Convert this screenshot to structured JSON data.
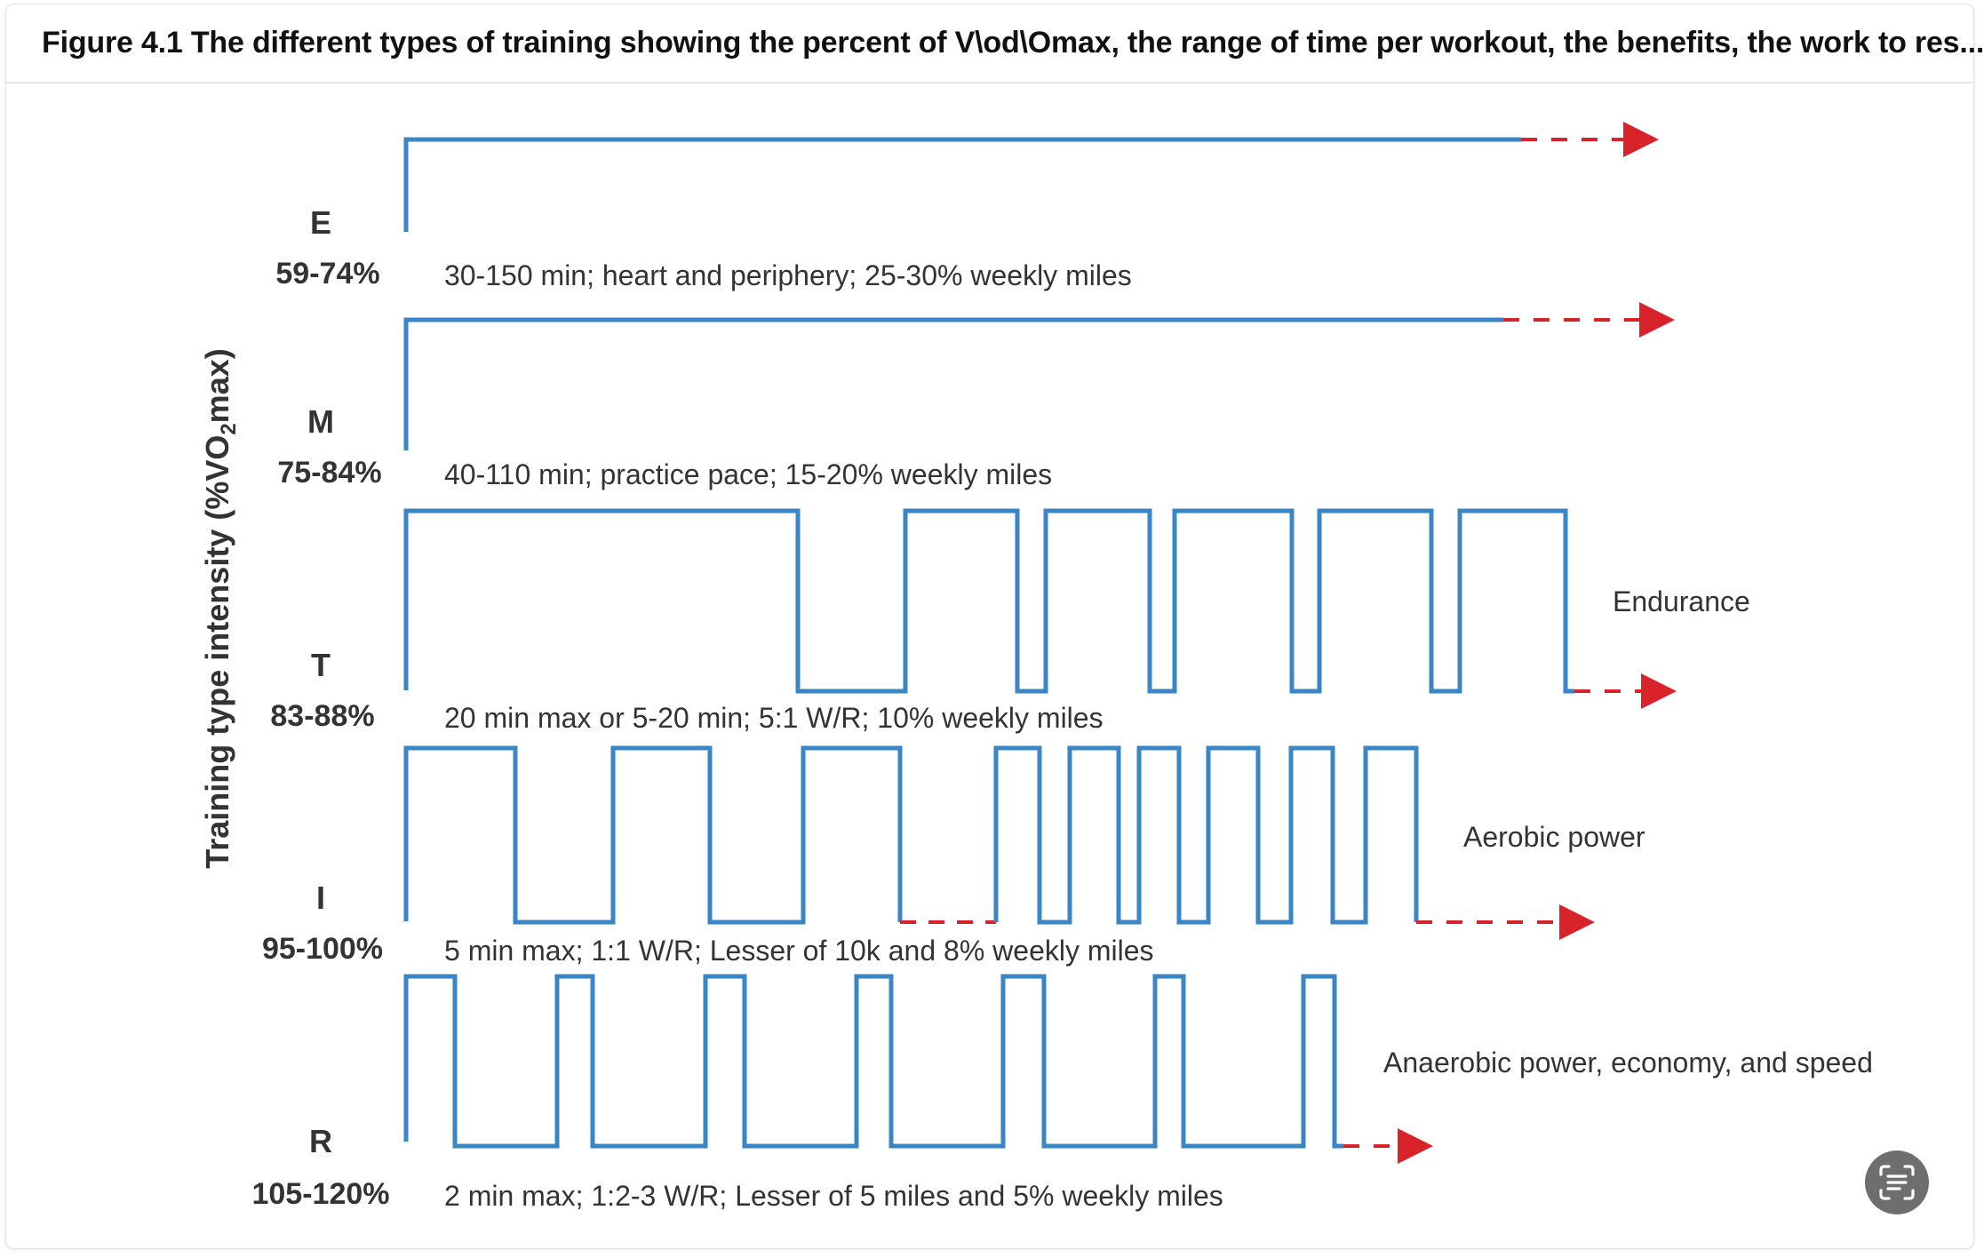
{
  "caption": "Figure 4.1 The different types of training showing the percent of V\\od\\Omax, the range of time per workout, the benefits, the work to res...",
  "figure": {
    "y_axis_label": {
      "prefix": "Training type intensity (%VO",
      "subscript": "2",
      "suffix": "max)"
    },
    "rows": [
      {
        "letter": "E",
        "percent": "59-74%",
        "description": "30-150 min; heart and periphery; 25-30% weekly miles"
      },
      {
        "letter": "M",
        "percent": "75-84%",
        "description": "40-110 min; practice pace; 15-20% weekly miles"
      },
      {
        "letter": "T",
        "percent": "83-88%",
        "description": "20 min max or 5-20 min; 5:1 W/R; 10% weekly miles",
        "benefit": "Endurance"
      },
      {
        "letter": "I",
        "percent": "95-100%",
        "description": "5 min max; 1:1 W/R;  Lesser of 10k and 8% weekly miles",
        "benefit": "Aerobic power"
      },
      {
        "letter": "R",
        "percent": "105-120%",
        "description": "2 min max; 1:2-3 W/R;  Lesser of 5 miles and 5% weekly miles",
        "benefit": "Anaerobic power, economy, and speed"
      }
    ],
    "colors": {
      "work_line": "#3a85c6",
      "continuation": "#d9232a",
      "text": "#333333"
    }
  },
  "toolbar": {
    "live_text_icon": "text-scan-icon"
  }
}
